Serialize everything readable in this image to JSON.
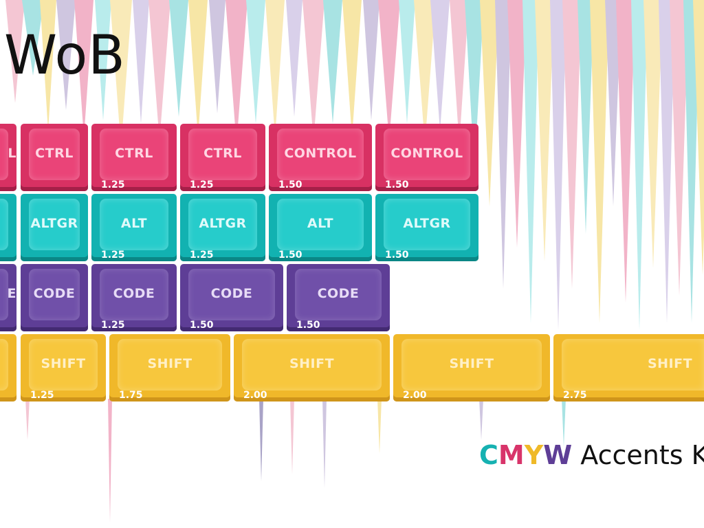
{
  "title": "WoB",
  "brand": {
    "c": "C",
    "m": "M",
    "y": "Y",
    "w": "W",
    "rest": " Accents K"
  },
  "colors": {
    "magenta": "#d83163",
    "teal": "#12b2b1",
    "purple": "#5e3e96",
    "yellow": "#f0b82a"
  },
  "rows": [
    {
      "color": "magenta",
      "keys": [
        {
          "label": "L",
          "size": ""
        },
        {
          "label": "CTRL",
          "size": ""
        },
        {
          "label": "CTRL",
          "size": "1.25"
        },
        {
          "label": "CTRL",
          "size": "1.25"
        },
        {
          "label": "CONTROL",
          "size": "1.50"
        },
        {
          "label": "CONTROL",
          "size": "1.50"
        }
      ]
    },
    {
      "color": "teal",
      "keys": [
        {
          "label": "",
          "size": ""
        },
        {
          "label": "ALTGR",
          "size": ""
        },
        {
          "label": "ALT",
          "size": "1.25"
        },
        {
          "label": "ALTGR",
          "size": "1.25"
        },
        {
          "label": "ALT",
          "size": "1.50"
        },
        {
          "label": "ALTGR",
          "size": "1.50"
        }
      ]
    },
    {
      "color": "purple",
      "keys": [
        {
          "label": "E",
          "size": ""
        },
        {
          "label": "CODE",
          "size": ""
        },
        {
          "label": "CODE",
          "size": "1.25"
        },
        {
          "label": "CODE",
          "size": "1.50"
        },
        {
          "label": "CODE",
          "size": "1.50"
        }
      ]
    },
    {
      "color": "yellow",
      "keys": [
        {
          "label": "",
          "size": ""
        },
        {
          "label": "SHIFT",
          "size": "1.25"
        },
        {
          "label": "SHIFT",
          "size": "1.75"
        },
        {
          "label": "SHIFT",
          "size": "2.00"
        },
        {
          "label": "SHIFT",
          "size": "2.00"
        },
        {
          "label": "SHIFT",
          "size": "2.75"
        }
      ]
    }
  ]
}
